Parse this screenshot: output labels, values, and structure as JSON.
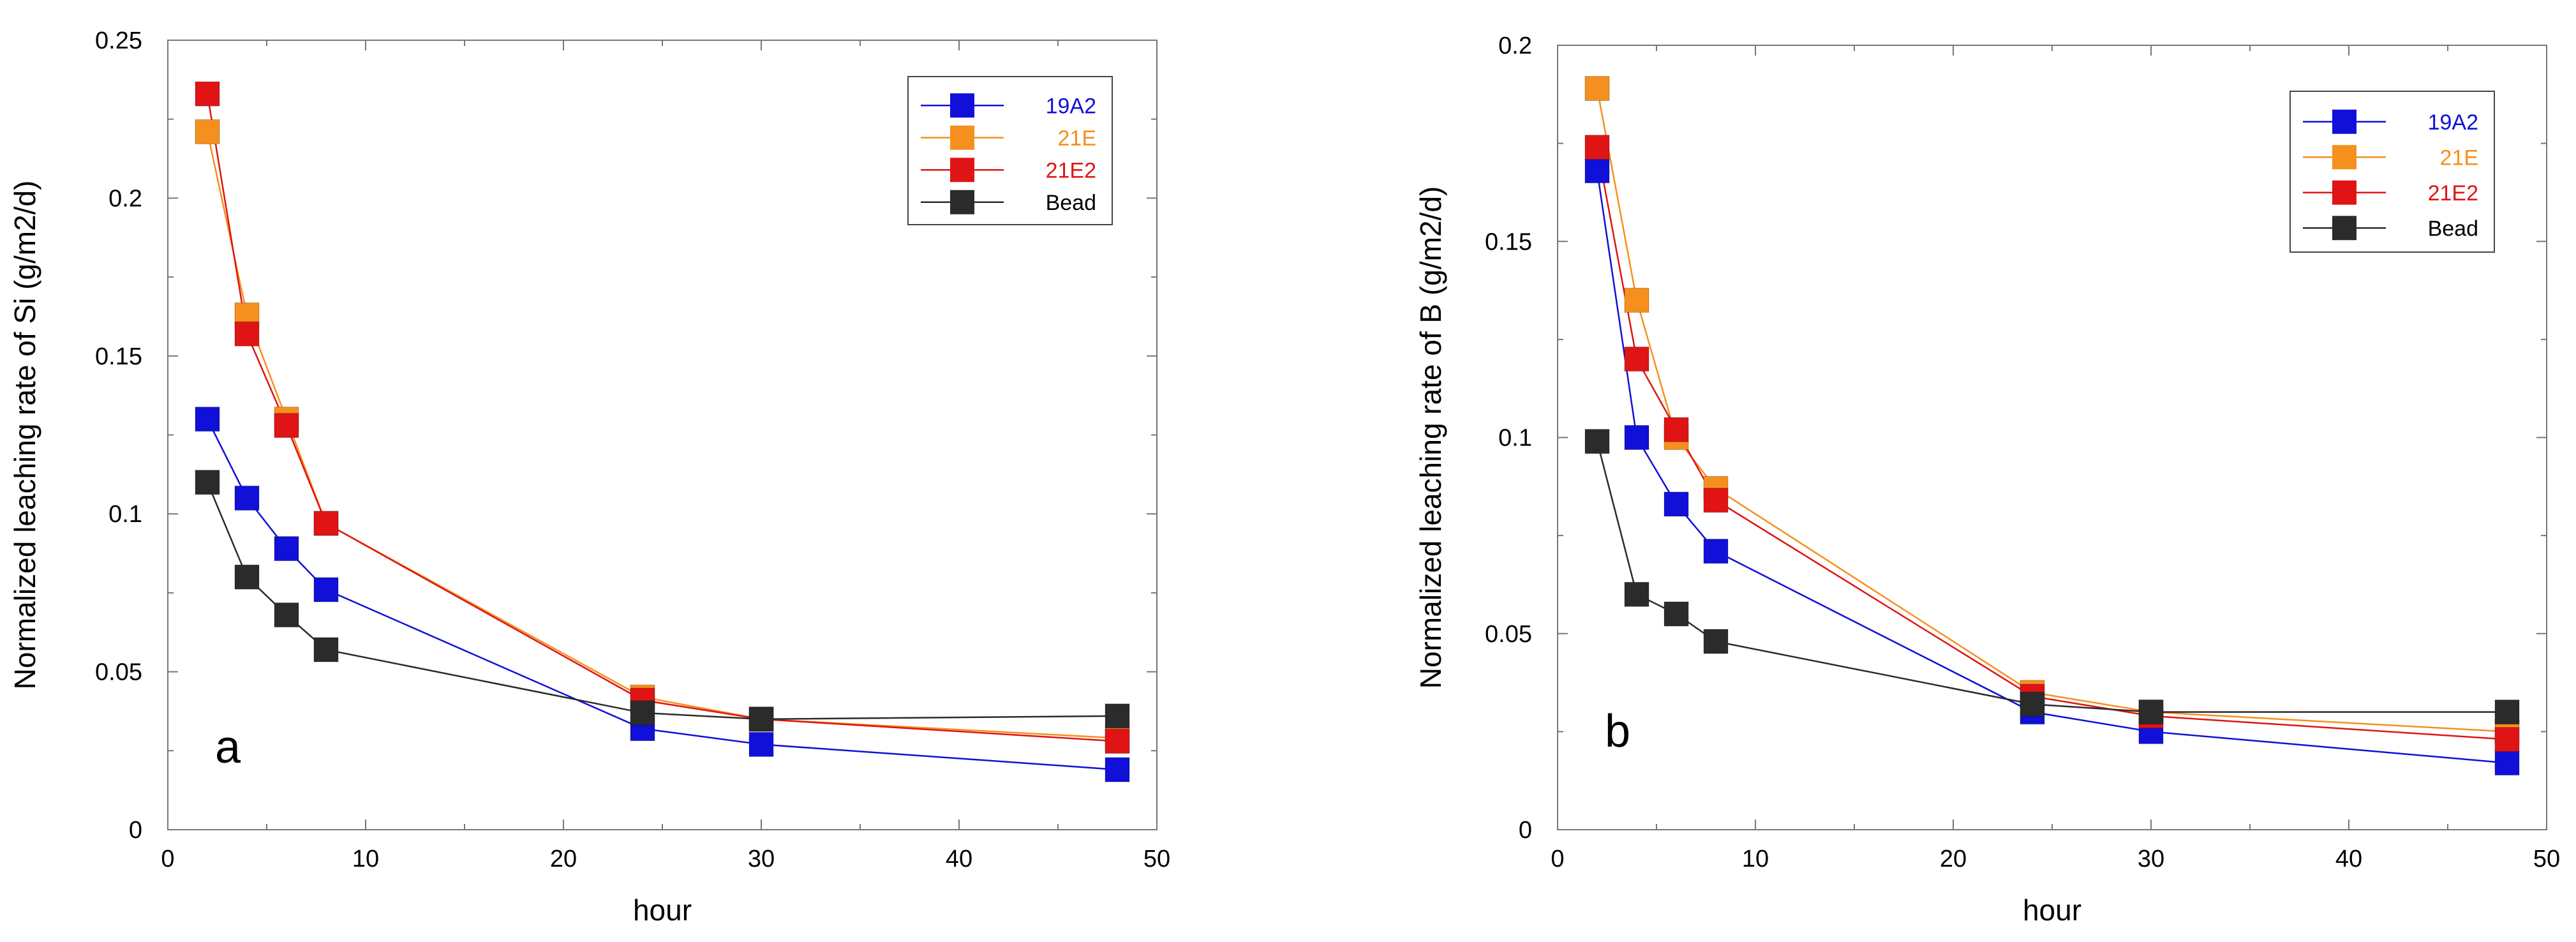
{
  "chart_data": [
    {
      "type": "line",
      "panel_label": "a",
      "title": "",
      "xlabel": "hour",
      "ylabel": "Normalized leaching rate of Si (g/m2/d)",
      "xlim": [
        0,
        50
      ],
      "ylim": [
        0,
        0.25
      ],
      "xticks": [
        0,
        10,
        20,
        30,
        40,
        50
      ],
      "yticks": [
        0,
        0.05,
        0.1,
        0.15,
        0.2,
        0.25
      ],
      "ytick_labels": [
        "0",
        "0.05",
        "0.1",
        "0.15",
        "0.2",
        "0.25"
      ],
      "xtick_labels": [
        "0",
        "10",
        "20",
        "30",
        "40",
        "50"
      ],
      "grid": false,
      "legend_position": "top-right",
      "x": [
        2,
        4,
        6,
        8,
        24,
        30,
        48
      ],
      "series": [
        {
          "name": "19A2",
          "color": "#1010d8",
          "values": [
            0.13,
            0.105,
            0.089,
            0.076,
            0.032,
            0.027,
            0.019
          ]
        },
        {
          "name": "21E",
          "color": "#f5901e",
          "values": [
            0.221,
            0.163,
            0.13,
            0.097,
            0.042,
            0.035,
            0.029
          ]
        },
        {
          "name": "21E2",
          "color": "#e01414",
          "values": [
            0.233,
            0.157,
            0.128,
            0.097,
            0.041,
            0.035,
            0.028
          ]
        },
        {
          "name": "Bead",
          "color": "#2b2b2b",
          "values": [
            0.11,
            0.08,
            0.068,
            0.057,
            0.037,
            0.035,
            0.036
          ]
        }
      ]
    },
    {
      "type": "line",
      "panel_label": "b",
      "title": "",
      "xlabel": "hour",
      "ylabel": "Normalized leaching rate of B (g/m2/d)",
      "xlim": [
        0,
        50
      ],
      "ylim": [
        0,
        0.2
      ],
      "xticks": [
        0,
        10,
        20,
        30,
        40,
        50
      ],
      "yticks": [
        0,
        0.05,
        0.1,
        0.15,
        0.2
      ],
      "ytick_labels": [
        "0",
        "0.05",
        "0.1",
        "0.15",
        "0.2"
      ],
      "xtick_labels": [
        "0",
        "10",
        "20",
        "30",
        "40",
        "50"
      ],
      "grid": false,
      "legend_position": "top-right",
      "x": [
        2,
        4,
        6,
        8,
        24,
        30,
        48
      ],
      "series": [
        {
          "name": "19A2",
          "color": "#1010d8",
          "values": [
            0.168,
            0.1,
            0.083,
            0.071,
            0.03,
            0.025,
            0.017
          ]
        },
        {
          "name": "21E",
          "color": "#f5901e",
          "values": [
            0.189,
            0.135,
            0.1,
            0.087,
            0.035,
            0.03,
            0.025
          ]
        },
        {
          "name": "21E2",
          "color": "#e01414",
          "values": [
            0.174,
            0.12,
            0.102,
            0.084,
            0.034,
            0.029,
            0.023
          ]
        },
        {
          "name": "Bead",
          "color": "#2b2b2b",
          "values": [
            0.099,
            0.06,
            0.055,
            0.048,
            0.032,
            0.03,
            0.03
          ]
        }
      ]
    }
  ]
}
